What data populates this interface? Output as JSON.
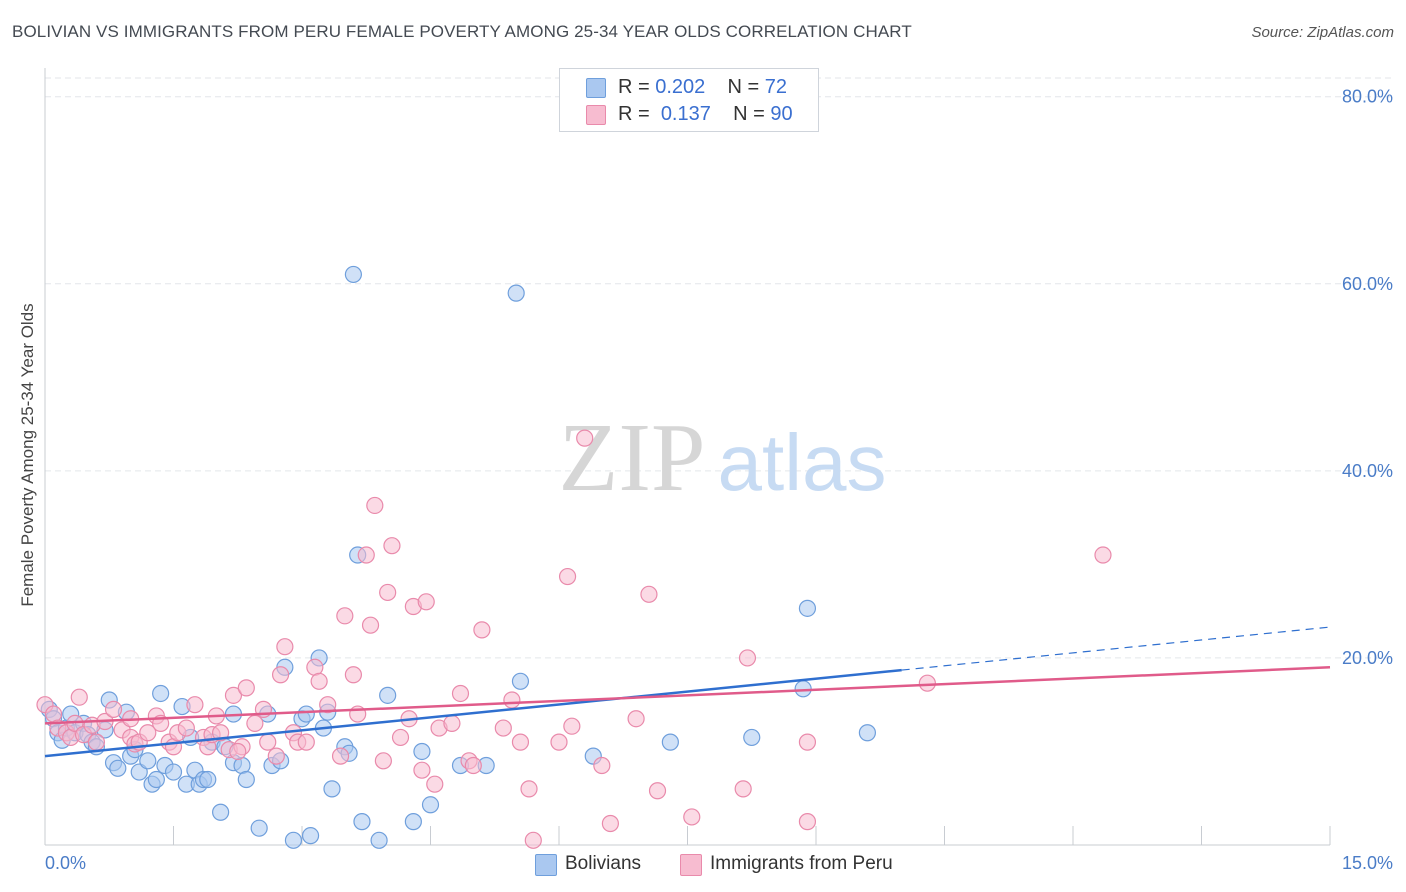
{
  "title": "BOLIVIAN VS IMMIGRANTS FROM PERU FEMALE POVERTY AMONG 25-34 YEAR OLDS CORRELATION CHART",
  "source": "Source: ZipAtlas.com",
  "watermark": {
    "zip": "ZIP",
    "atlas": "atlas"
  },
  "legend_top": {
    "rows": [
      {
        "r_label": "R =",
        "r_value": "0.202",
        "n_label": "N =",
        "n_value": "72",
        "color": "#aac8f0",
        "border": "#6f9fdc"
      },
      {
        "r_label": "R =",
        "r_value": "0.137",
        "n_label": "N =",
        "n_value": "90",
        "color": "#f7bcd0",
        "border": "#e98aab"
      }
    ]
  },
  "legend_bottom": [
    {
      "label": "Bolivians",
      "color": "#aac8f0",
      "border": "#6f9fdc"
    },
    {
      "label": "Immigrants from Peru",
      "color": "#f7bcd0",
      "border": "#e98aab"
    }
  ],
  "chart_data": {
    "type": "scatter",
    "title": "BOLIVIAN VS IMMIGRANTS FROM PERU FEMALE POVERTY AMONG 25-34 YEAR OLDS CORRELATION CHART",
    "xlabel": "",
    "ylabel": "Female Poverty Among 25-34 Year Olds",
    "xlim": [
      0,
      15
    ],
    "ylim": [
      0,
      82
    ],
    "x_tick_labels": [
      {
        "value": 0,
        "label": "0.0%"
      },
      {
        "value": 15,
        "label": "15.0%"
      }
    ],
    "y_tick_labels": [
      {
        "value": 20,
        "label": "20.0%"
      },
      {
        "value": 40,
        "label": "40.0%"
      },
      {
        "value": 60,
        "label": "60.0%"
      },
      {
        "value": 80,
        "label": "80.0%"
      }
    ],
    "grid": true,
    "legend_position": "top-center",
    "series": [
      {
        "name": "Bolivians",
        "color": "#6f9fdc",
        "fill": "#aac8f0",
        "trend": {
          "x0": 0,
          "y0": 9.5,
          "x1": 10.0,
          "y1": 18.7,
          "dashed_to_x": 15,
          "dashed_to_y": 23.3,
          "color": "#2f6fcf"
        },
        "points": [
          [
            0.05,
            14.5
          ],
          [
            0.1,
            13.5
          ],
          [
            0.15,
            12.0
          ],
          [
            0.2,
            11.2
          ],
          [
            0.25,
            12.5
          ],
          [
            0.3,
            14.0
          ],
          [
            0.35,
            12.0
          ],
          [
            0.45,
            13.0
          ],
          [
            0.5,
            11.8
          ],
          [
            0.55,
            11.0
          ],
          [
            0.6,
            10.5
          ],
          [
            0.75,
            15.5
          ],
          [
            0.8,
            8.8
          ],
          [
            0.85,
            8.2
          ],
          [
            0.95,
            14.2
          ],
          [
            1.0,
            9.5
          ],
          [
            1.05,
            10.2
          ],
          [
            1.1,
            7.8
          ],
          [
            1.2,
            9.0
          ],
          [
            1.25,
            6.5
          ],
          [
            1.3,
            7.0
          ],
          [
            1.35,
            16.2
          ],
          [
            1.4,
            8.5
          ],
          [
            1.5,
            7.8
          ],
          [
            1.6,
            14.8
          ],
          [
            1.65,
            6.5
          ],
          [
            1.7,
            11.5
          ],
          [
            1.75,
            8.0
          ],
          [
            1.8,
            6.5
          ],
          [
            1.85,
            7.0
          ],
          [
            1.9,
            7.0
          ],
          [
            1.95,
            11.0
          ],
          [
            2.05,
            3.5
          ],
          [
            2.1,
            10.5
          ],
          [
            2.2,
            8.8
          ],
          [
            2.3,
            8.5
          ],
          [
            2.35,
            7.0
          ],
          [
            2.5,
            1.8
          ],
          [
            2.6,
            14.0
          ],
          [
            2.65,
            8.5
          ],
          [
            2.75,
            9.0
          ],
          [
            2.8,
            19.0
          ],
          [
            2.9,
            0.5
          ],
          [
            3.0,
            13.5
          ],
          [
            3.05,
            14.0
          ],
          [
            3.1,
            1.0
          ],
          [
            3.2,
            20.0
          ],
          [
            3.25,
            12.5
          ],
          [
            3.3,
            14.2
          ],
          [
            3.35,
            6.0
          ],
          [
            3.5,
            10.5
          ],
          [
            3.55,
            9.8
          ],
          [
            3.6,
            61.0
          ],
          [
            3.65,
            31.0
          ],
          [
            3.7,
            2.5
          ],
          [
            3.9,
            0.5
          ],
          [
            4.0,
            16.0
          ],
          [
            4.3,
            2.5
          ],
          [
            4.4,
            10.0
          ],
          [
            4.5,
            4.3
          ],
          [
            4.85,
            8.5
          ],
          [
            5.15,
            8.5
          ],
          [
            5.5,
            59.0
          ],
          [
            5.55,
            17.5
          ],
          [
            6.4,
            9.5
          ],
          [
            7.3,
            11.0
          ],
          [
            8.25,
            11.5
          ],
          [
            8.85,
            16.7
          ],
          [
            8.9,
            25.3
          ],
          [
            9.6,
            12.0
          ],
          [
            2.2,
            14.0
          ],
          [
            0.7,
            12.3
          ]
        ]
      },
      {
        "name": "Immigrants from Peru",
        "color": "#e98aab",
        "fill": "#f7bcd0",
        "trend": {
          "x0": 0,
          "y0": 13.0,
          "x1": 15,
          "y1": 19.0,
          "color": "#e05b8a"
        },
        "points": [
          [
            0.0,
            15.0
          ],
          [
            0.1,
            14.0
          ],
          [
            0.15,
            12.5
          ],
          [
            0.25,
            12.0
          ],
          [
            0.3,
            11.5
          ],
          [
            0.35,
            13.0
          ],
          [
            0.45,
            11.8
          ],
          [
            0.55,
            12.8
          ],
          [
            0.6,
            11.0
          ],
          [
            0.7,
            13.2
          ],
          [
            0.8,
            14.5
          ],
          [
            0.9,
            12.3
          ],
          [
            1.0,
            11.5
          ],
          [
            1.05,
            10.8
          ],
          [
            1.1,
            11.0
          ],
          [
            1.2,
            12.0
          ],
          [
            1.3,
            13.8
          ],
          [
            1.35,
            13.0
          ],
          [
            1.45,
            11.0
          ],
          [
            1.5,
            10.5
          ],
          [
            1.55,
            12.0
          ],
          [
            1.65,
            12.5
          ],
          [
            1.75,
            15.0
          ],
          [
            1.85,
            11.5
          ],
          [
            1.9,
            10.5
          ],
          [
            1.95,
            11.8
          ],
          [
            2.0,
            13.8
          ],
          [
            2.05,
            12.0
          ],
          [
            2.15,
            10.2
          ],
          [
            2.2,
            16.0
          ],
          [
            2.3,
            10.5
          ],
          [
            2.35,
            16.8
          ],
          [
            2.45,
            13.0
          ],
          [
            2.55,
            14.5
          ],
          [
            2.6,
            11.0
          ],
          [
            2.7,
            9.5
          ],
          [
            2.75,
            18.2
          ],
          [
            2.8,
            21.2
          ],
          [
            2.9,
            12.0
          ],
          [
            2.95,
            11.0
          ],
          [
            3.05,
            11.0
          ],
          [
            3.15,
            19.0
          ],
          [
            3.2,
            17.5
          ],
          [
            3.3,
            15.0
          ],
          [
            3.45,
            9.5
          ],
          [
            3.5,
            24.5
          ],
          [
            3.6,
            18.2
          ],
          [
            3.65,
            14.0
          ],
          [
            3.75,
            31.0
          ],
          [
            3.8,
            23.5
          ],
          [
            3.85,
            36.3
          ],
          [
            3.95,
            9.0
          ],
          [
            4.0,
            27.0
          ],
          [
            4.05,
            32.0
          ],
          [
            4.15,
            11.5
          ],
          [
            4.25,
            13.5
          ],
          [
            4.3,
            25.5
          ],
          [
            4.4,
            8.0
          ],
          [
            4.45,
            26.0
          ],
          [
            4.55,
            6.5
          ],
          [
            4.6,
            12.5
          ],
          [
            4.75,
            13.0
          ],
          [
            4.85,
            16.2
          ],
          [
            4.95,
            9.0
          ],
          [
            5.1,
            23.0
          ],
          [
            5.35,
            12.5
          ],
          [
            5.45,
            15.5
          ],
          [
            5.55,
            11.0
          ],
          [
            5.65,
            6.0
          ],
          [
            5.7,
            0.5
          ],
          [
            6.1,
            28.7
          ],
          [
            6.15,
            12.7
          ],
          [
            6.3,
            43.5
          ],
          [
            6.5,
            8.5
          ],
          [
            6.6,
            2.3
          ],
          [
            6.9,
            13.5
          ],
          [
            7.05,
            26.8
          ],
          [
            7.15,
            5.8
          ],
          [
            7.55,
            3.0
          ],
          [
            8.15,
            6.0
          ],
          [
            8.2,
            20.0
          ],
          [
            8.9,
            11.0
          ],
          [
            8.9,
            2.5
          ],
          [
            10.3,
            17.3
          ],
          [
            12.35,
            31.0
          ],
          [
            0.4,
            15.8
          ],
          [
            1.0,
            13.5
          ],
          [
            2.25,
            10.0
          ],
          [
            6.0,
            11.0
          ],
          [
            5.0,
            8.5
          ]
        ]
      }
    ]
  }
}
